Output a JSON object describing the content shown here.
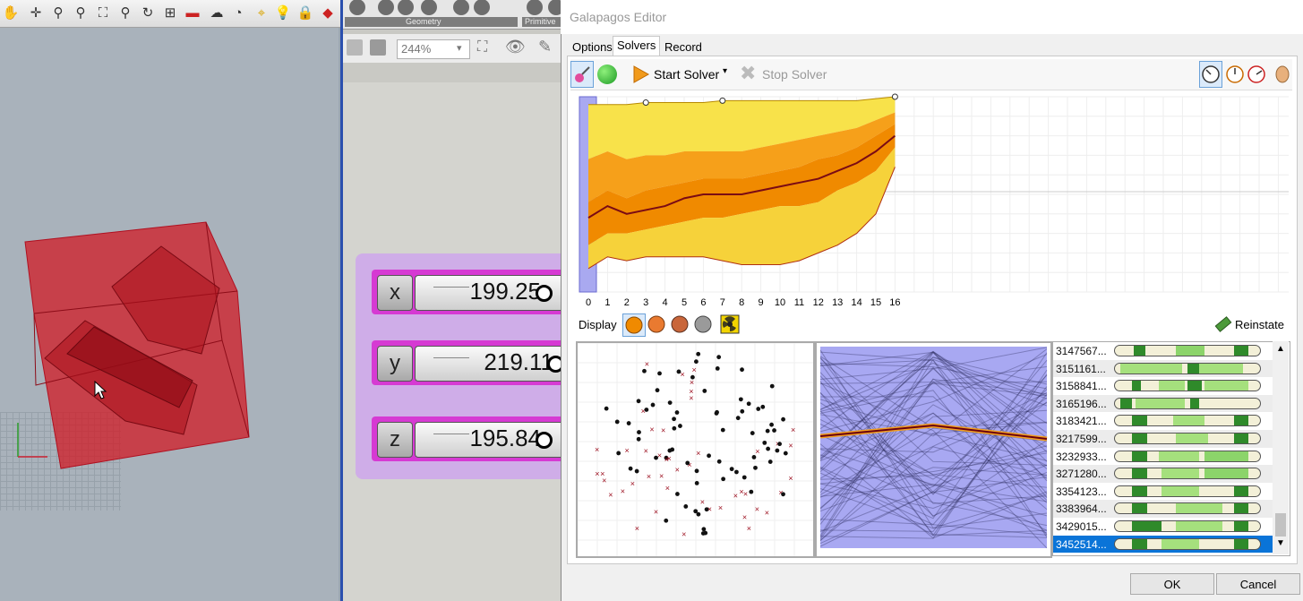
{
  "gh": {
    "geometry_label": "Geometry",
    "primitive_label": "Primitive",
    "zoom_value": "244%",
    "sliders": [
      {
        "name": "x",
        "value": "199.25"
      },
      {
        "name": "y",
        "value": "219.11"
      },
      {
        "name": "z",
        "value": "195.84"
      }
    ]
  },
  "galapagos": {
    "title": "Galapagos Editor",
    "tabs": [
      "Options",
      "Solvers",
      "Record"
    ],
    "active_tab": "Solvers",
    "start_solver": "Start Solver",
    "stop_solver": "Stop Solver",
    "display_label": "Display",
    "reinstate_label": "Reinstate",
    "ok_label": "OK",
    "cancel_label": "Cancel",
    "genomes": [
      {
        "id": "3147567...",
        "bars": [
          [
            0.13,
            0.08,
            "#2f8a2a"
          ],
          [
            0.42,
            0.2,
            "#8cd46a"
          ],
          [
            0.82,
            0.1,
            "#2f8a2a"
          ]
        ]
      },
      {
        "id": "3151161...",
        "bars": [
          [
            0.04,
            0.42,
            "#a5e07d"
          ],
          [
            0.5,
            0.08,
            "#2f8a2a"
          ],
          [
            0.58,
            0.3,
            "#a5e07d"
          ]
        ]
      },
      {
        "id": "3158841...",
        "bars": [
          [
            0.12,
            0.06,
            "#2f8a2a"
          ],
          [
            0.3,
            0.18,
            "#a5e07d"
          ],
          [
            0.5,
            0.1,
            "#2f8a2a"
          ],
          [
            0.62,
            0.3,
            "#a5e07d"
          ]
        ]
      },
      {
        "id": "3165196...",
        "bars": [
          [
            0.04,
            0.08,
            "#2f8a2a"
          ],
          [
            0.14,
            0.34,
            "#a5e07d"
          ],
          [
            0.52,
            0.06,
            "#2f8a2a"
          ]
        ]
      },
      {
        "id": "3183421...",
        "bars": [
          [
            0.12,
            0.1,
            "#2f8a2a"
          ],
          [
            0.4,
            0.22,
            "#a5e07d"
          ],
          [
            0.82,
            0.1,
            "#2f8a2a"
          ]
        ]
      },
      {
        "id": "3217599...",
        "bars": [
          [
            0.12,
            0.1,
            "#2f8a2a"
          ],
          [
            0.42,
            0.22,
            "#a5e07d"
          ],
          [
            0.82,
            0.1,
            "#2f8a2a"
          ]
        ]
      },
      {
        "id": "3232933...",
        "bars": [
          [
            0.12,
            0.1,
            "#2f8a2a"
          ],
          [
            0.3,
            0.28,
            "#a5e07d"
          ],
          [
            0.62,
            0.3,
            "#8cd46a"
          ]
        ]
      },
      {
        "id": "3271280...",
        "bars": [
          [
            0.12,
            0.1,
            "#2f8a2a"
          ],
          [
            0.32,
            0.26,
            "#a5e07d"
          ],
          [
            0.62,
            0.3,
            "#8cd46a"
          ]
        ]
      },
      {
        "id": "3354123...",
        "bars": [
          [
            0.12,
            0.1,
            "#2f8a2a"
          ],
          [
            0.32,
            0.26,
            "#a5e07d"
          ],
          [
            0.82,
            0.1,
            "#2f8a2a"
          ]
        ]
      },
      {
        "id": "3383964...",
        "bars": [
          [
            0.12,
            0.1,
            "#2f8a2a"
          ],
          [
            0.42,
            0.32,
            "#a5e07d"
          ],
          [
            0.82,
            0.1,
            "#2f8a2a"
          ]
        ]
      },
      {
        "id": "3429015...",
        "bars": [
          [
            0.12,
            0.2,
            "#2f8a2a"
          ],
          [
            0.42,
            0.32,
            "#a5e07d"
          ],
          [
            0.82,
            0.1,
            "#2f8a2a"
          ]
        ]
      },
      {
        "id": "3452514...",
        "bars": [
          [
            0.12,
            0.1,
            "#2f8a2a"
          ],
          [
            0.32,
            0.26,
            "#a5e07d"
          ],
          [
            0.82,
            0.1,
            "#2f8a2a"
          ]
        ],
        "selected": true
      }
    ]
  },
  "chart_data": {
    "type": "area",
    "categories": [
      "0",
      "1",
      "2",
      "3",
      "4",
      "5",
      "6",
      "7",
      "8",
      "9",
      "10",
      "11",
      "12",
      "13",
      "14",
      "15",
      "16"
    ],
    "ylim": [
      0,
      100
    ],
    "series": [
      {
        "values": [
          96,
          96,
          96,
          97,
          97,
          97,
          97,
          98,
          98,
          98,
          98,
          98,
          98,
          98,
          98,
          99,
          100
        ]
      },
      {
        "values": [
          68,
          72,
          68,
          70,
          70,
          72,
          72,
          72,
          72,
          74,
          76,
          78,
          80,
          82,
          84,
          88,
          92
        ]
      },
      {
        "values": [
          46,
          52,
          48,
          52,
          54,
          56,
          58,
          58,
          58,
          60,
          62,
          64,
          68,
          70,
          74,
          80,
          86
        ]
      },
      {
        "values": [
          38,
          44,
          40,
          42,
          44,
          48,
          50,
          50,
          50,
          52,
          54,
          56,
          58,
          62,
          66,
          72,
          80
        ]
      },
      {
        "values": [
          24,
          30,
          30,
          32,
          34,
          36,
          38,
          38,
          40,
          42,
          44,
          44,
          46,
          52,
          56,
          62,
          74
        ]
      },
      {
        "values": [
          12,
          18,
          16,
          18,
          18,
          18,
          18,
          16,
          14,
          14,
          14,
          16,
          20,
          24,
          30,
          40,
          64
        ]
      }
    ]
  }
}
